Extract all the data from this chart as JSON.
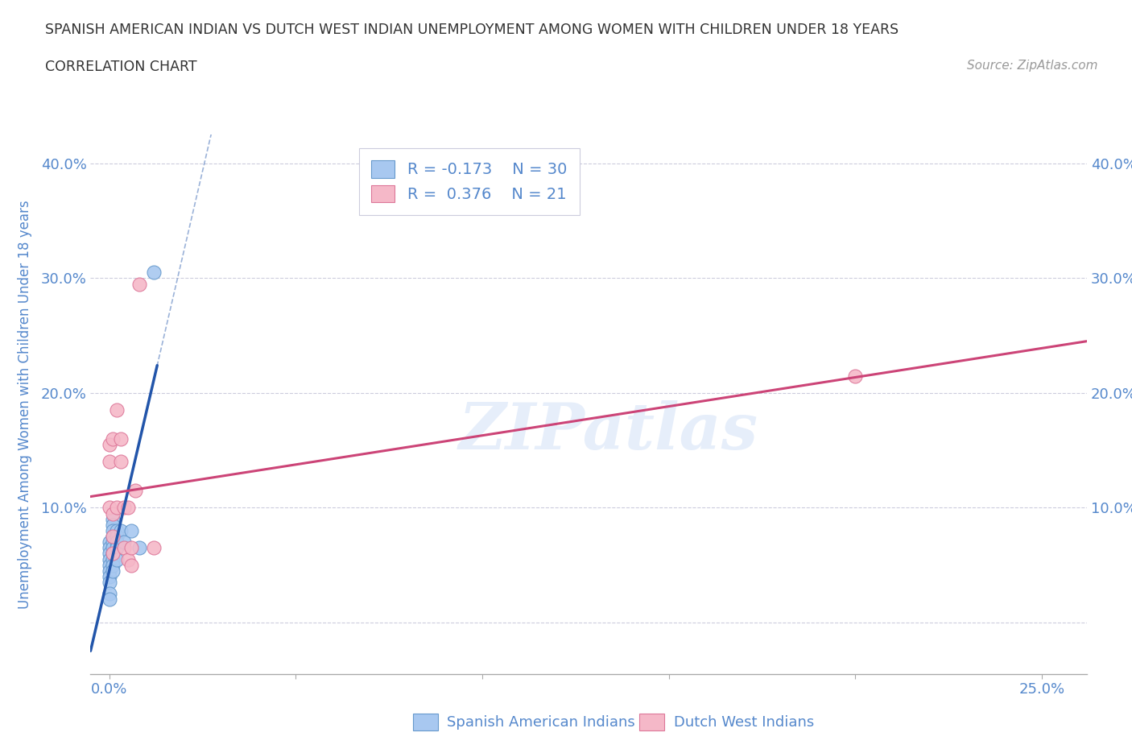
{
  "title_line1": "SPANISH AMERICAN INDIAN VS DUTCH WEST INDIAN UNEMPLOYMENT AMONG WOMEN WITH CHILDREN UNDER 18 YEARS",
  "title_line2": "CORRELATION CHART",
  "source": "Source: ZipAtlas.com",
  "ylabel": "Unemployment Among Women with Children Under 18 years",
  "xlim": [
    -0.005,
    0.262
  ],
  "ylim": [
    -0.045,
    0.425
  ],
  "xticks": [
    0.0,
    0.05,
    0.1,
    0.15,
    0.2,
    0.25
  ],
  "xtick_labels": [
    "0.0%",
    "",
    "",
    "",
    "",
    "25.0%"
  ],
  "yticks": [
    0.0,
    0.1,
    0.2,
    0.3,
    0.4
  ],
  "ytick_labels": [
    "",
    "10.0%",
    "20.0%",
    "30.0%",
    "40.0%"
  ],
  "blue_R": "-0.173",
  "blue_N": "30",
  "pink_R": "0.376",
  "pink_N": "21",
  "blue_color": "#a8c8f0",
  "blue_line_color": "#2255aa",
  "blue_edge_color": "#6699cc",
  "pink_color": "#f5b8c8",
  "pink_line_color": "#cc4477",
  "pink_edge_color": "#dd7799",
  "watermark": "ZIPatlas",
  "blue_points_x": [
    0.0,
    0.0,
    0.0,
    0.0,
    0.0,
    0.0,
    0.0,
    0.0,
    0.0,
    0.0,
    0.001,
    0.001,
    0.001,
    0.001,
    0.001,
    0.001,
    0.001,
    0.001,
    0.001,
    0.001,
    0.002,
    0.002,
    0.002,
    0.002,
    0.002,
    0.003,
    0.004,
    0.006,
    0.008,
    0.012
  ],
  "blue_points_y": [
    0.07,
    0.065,
    0.06,
    0.055,
    0.05,
    0.045,
    0.04,
    0.035,
    0.025,
    0.02,
    0.09,
    0.085,
    0.08,
    0.075,
    0.07,
    0.065,
    0.06,
    0.055,
    0.05,
    0.045,
    0.08,
    0.075,
    0.07,
    0.065,
    0.055,
    0.08,
    0.07,
    0.08,
    0.065,
    0.305
  ],
  "pink_points_x": [
    0.0,
    0.0,
    0.0,
    0.001,
    0.001,
    0.001,
    0.001,
    0.002,
    0.002,
    0.003,
    0.003,
    0.004,
    0.004,
    0.005,
    0.005,
    0.006,
    0.006,
    0.007,
    0.008,
    0.012,
    0.2
  ],
  "pink_points_y": [
    0.155,
    0.14,
    0.1,
    0.16,
    0.095,
    0.075,
    0.06,
    0.185,
    0.1,
    0.16,
    0.14,
    0.1,
    0.065,
    0.1,
    0.055,
    0.065,
    0.05,
    0.115,
    0.295,
    0.065,
    0.215
  ],
  "background_color": "#ffffff",
  "grid_color": "#ccccdd",
  "axis_color": "#5588cc",
  "title_color": "#333333"
}
